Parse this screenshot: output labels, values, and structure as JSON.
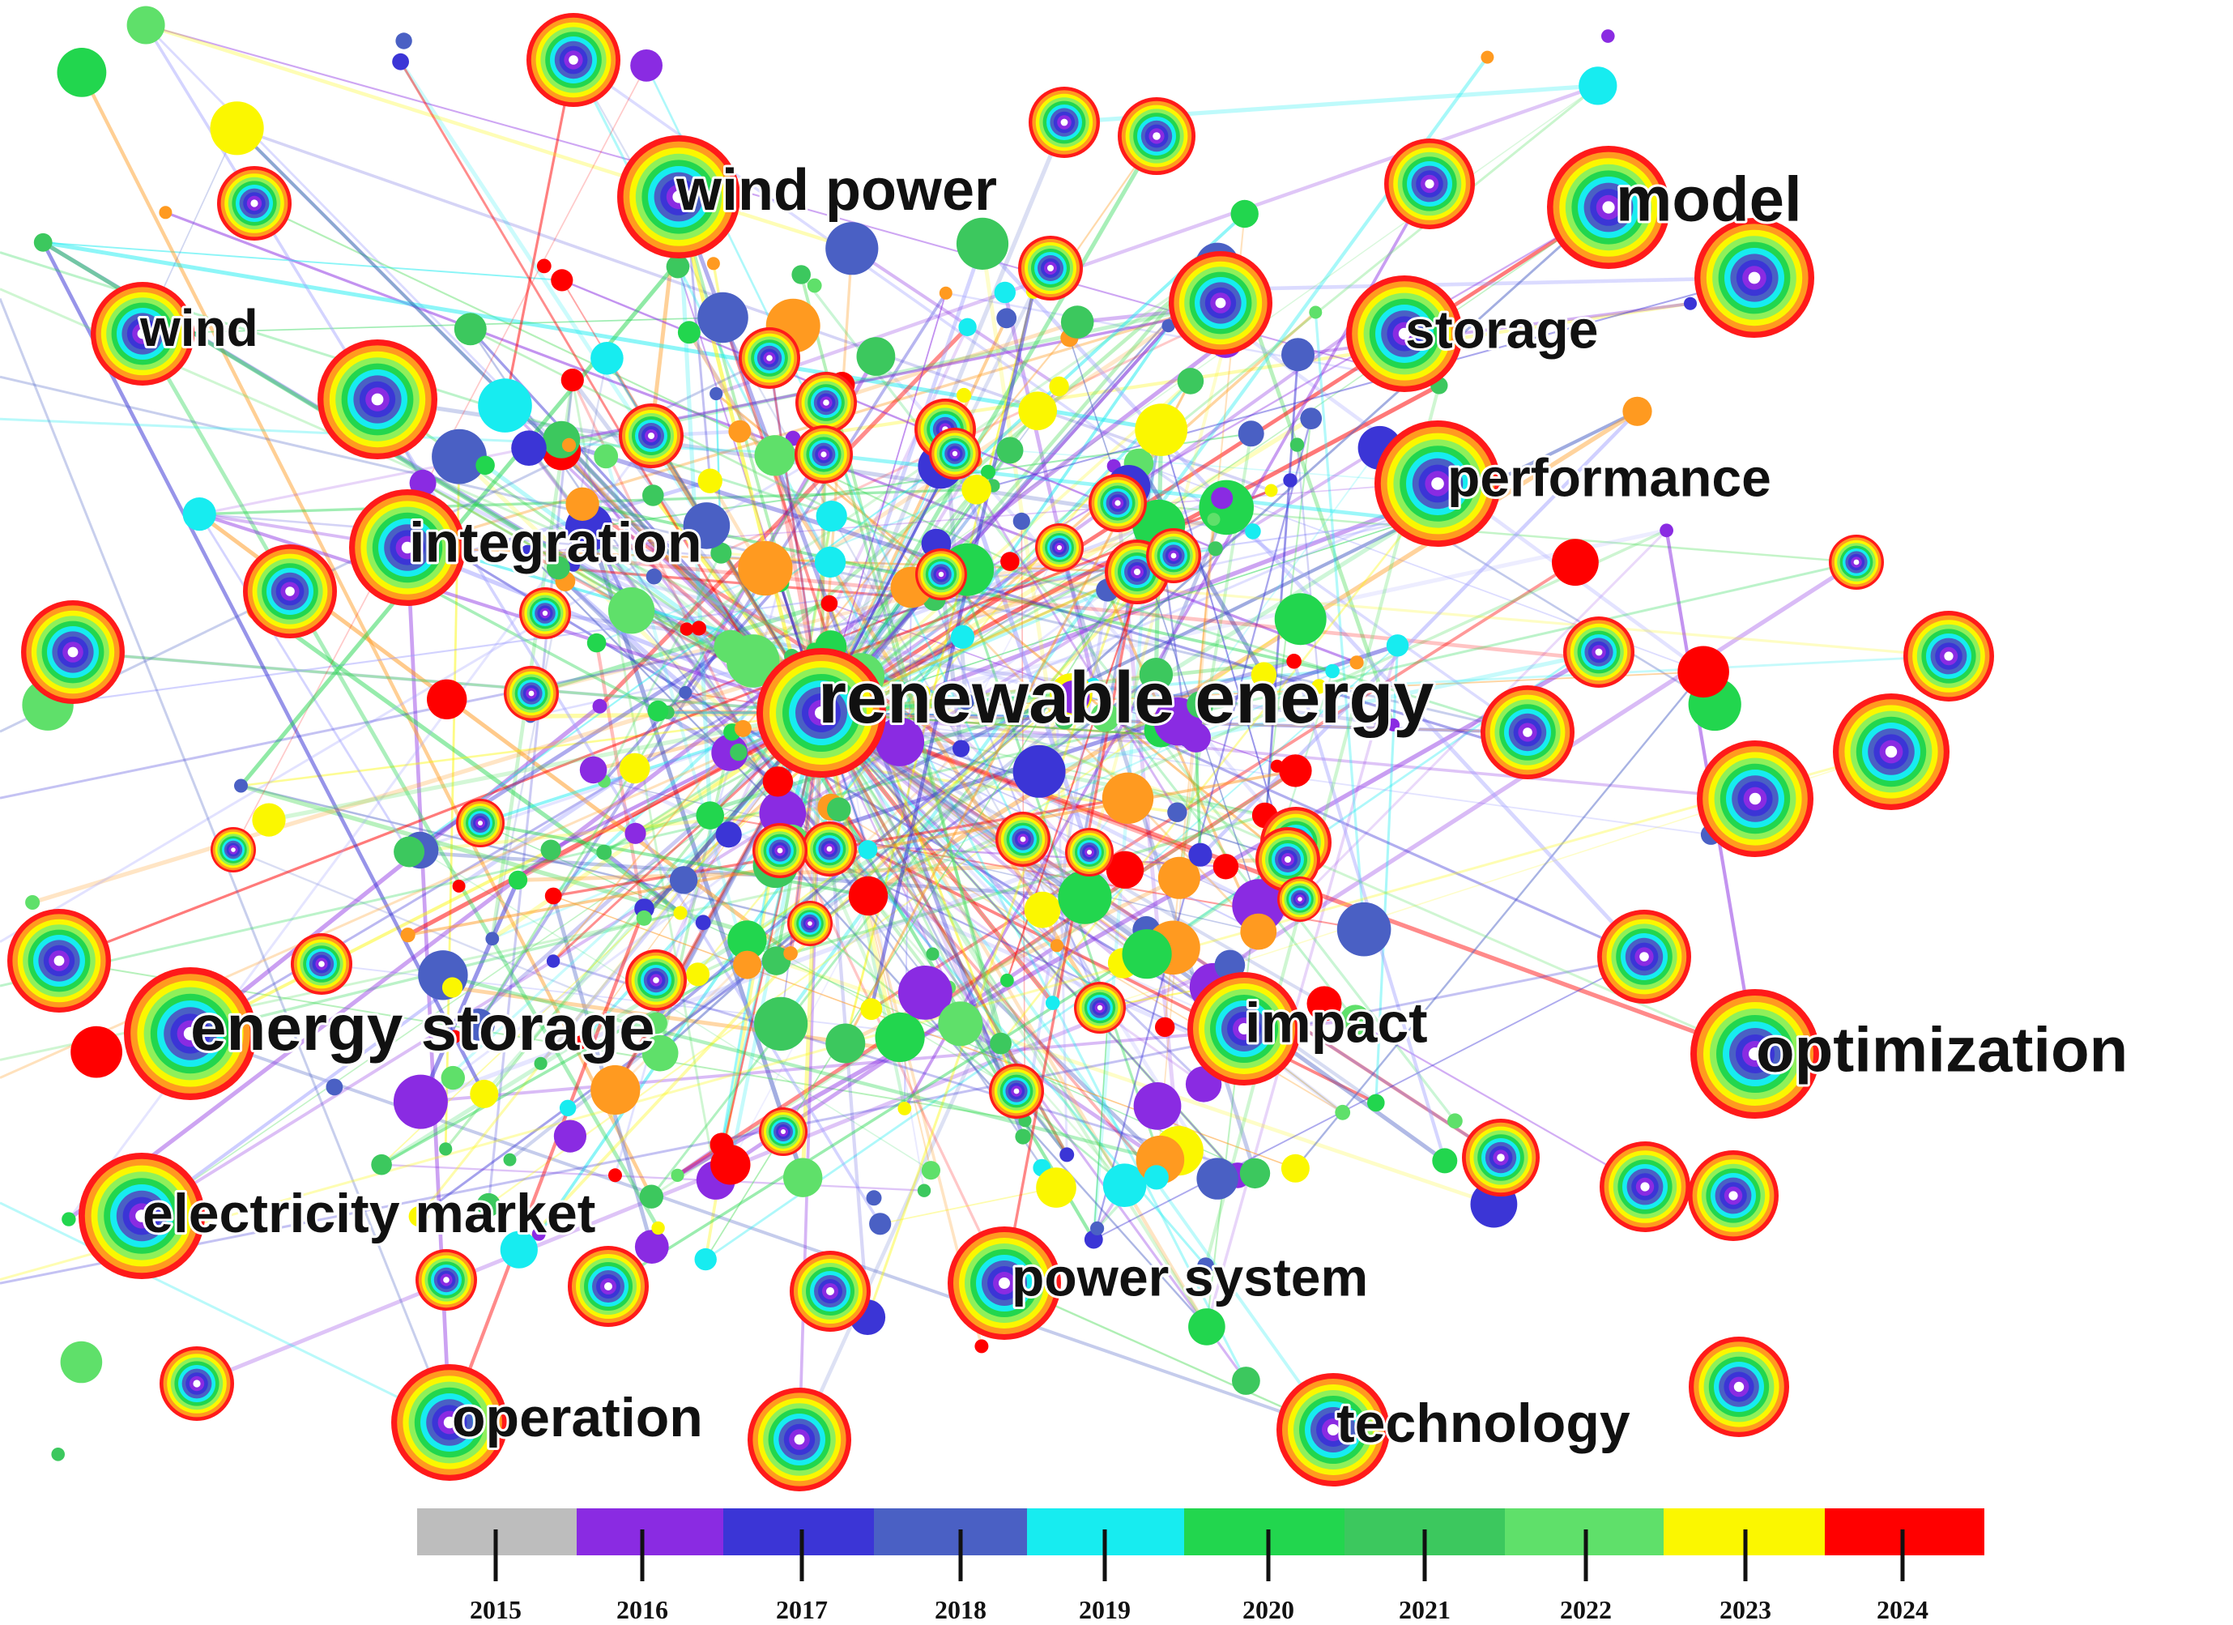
{
  "labels": [
    {
      "id": "wind-power",
      "text": "wind power"
    },
    {
      "id": "model",
      "text": "model"
    },
    {
      "id": "wind",
      "text": "wind"
    },
    {
      "id": "storage",
      "text": "storage"
    },
    {
      "id": "performance",
      "text": "performance"
    },
    {
      "id": "integration",
      "text": "integration"
    },
    {
      "id": "renewable-energy",
      "text": "renewable energy"
    },
    {
      "id": "energy-storage",
      "text": "energy storage"
    },
    {
      "id": "impact",
      "text": "impact"
    },
    {
      "id": "optimization",
      "text": "optimization"
    },
    {
      "id": "electricity-market",
      "text": "electricity market"
    },
    {
      "id": "power-system",
      "text": "power system"
    },
    {
      "id": "operation",
      "text": "operation"
    },
    {
      "id": "technology",
      "text": "technology"
    }
  ],
  "timeline": {
    "years": [
      "2015",
      "2016",
      "2017",
      "2018",
      "2019",
      "2020",
      "2021",
      "2022",
      "2023",
      "2024"
    ],
    "colors": [
      "#bdbdbd",
      "#8a2be2",
      "#3b35d6",
      "#4a60c4",
      "#17ecf0",
      "#22d64e",
      "#3cc85e",
      "#5fe06a",
      "#fbf700",
      "#ff0000"
    ]
  }
}
